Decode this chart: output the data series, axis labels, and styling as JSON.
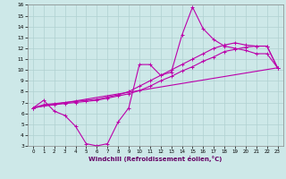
{
  "xlabel": "Windchill (Refroidissement éolien,°C)",
  "bg_color": "#cde8e8",
  "grid_color": "#b0d0d0",
  "line_color": "#bb00aa",
  "xlim": [
    -0.5,
    23.5
  ],
  "ylim": [
    3,
    16
  ],
  "xticks": [
    0,
    1,
    2,
    3,
    4,
    5,
    6,
    7,
    8,
    9,
    10,
    11,
    12,
    13,
    14,
    15,
    16,
    17,
    18,
    19,
    20,
    21,
    22,
    23
  ],
  "yticks": [
    3,
    4,
    5,
    6,
    7,
    8,
    9,
    10,
    11,
    12,
    13,
    14,
    15,
    16
  ],
  "series": [
    {
      "x": [
        0,
        1,
        2,
        3,
        4,
        5,
        6,
        7,
        8,
        9,
        10,
        11,
        12,
        13,
        14,
        15,
        16,
        17,
        18,
        19,
        20,
        21,
        22,
        23
      ],
      "y": [
        6.5,
        7.2,
        6.2,
        5.8,
        4.8,
        3.2,
        3.0,
        3.2,
        5.2,
        6.5,
        10.5,
        10.5,
        9.5,
        9.8,
        13.2,
        15.8,
        13.8,
        12.8,
        12.2,
        12.0,
        11.8,
        11.5,
        11.5,
        10.2
      ]
    },
    {
      "x": [
        0,
        1,
        2,
        3,
        4,
        5,
        6,
        7,
        8,
        9,
        10,
        11,
        12,
        13,
        14,
        15,
        16,
        17,
        18,
        19,
        20,
        21,
        22,
        23
      ],
      "y": [
        6.5,
        6.8,
        6.9,
        7.0,
        7.1,
        7.2,
        7.3,
        7.5,
        7.7,
        8.0,
        8.5,
        9.0,
        9.5,
        10.0,
        10.5,
        11.0,
        11.5,
        12.0,
        12.3,
        12.5,
        12.3,
        12.2,
        12.2,
        10.2
      ]
    },
    {
      "x": [
        0,
        1,
        2,
        3,
        4,
        5,
        6,
        7,
        8,
        9,
        10,
        11,
        12,
        13,
        14,
        15,
        16,
        17,
        18,
        19,
        20,
        21,
        22,
        23
      ],
      "y": [
        6.5,
        6.7,
        6.8,
        6.9,
        7.0,
        7.1,
        7.2,
        7.4,
        7.6,
        7.8,
        8.1,
        8.5,
        9.0,
        9.4,
        9.9,
        10.3,
        10.8,
        11.2,
        11.7,
        11.9,
        12.1,
        12.2,
        12.2,
        10.2
      ]
    },
    {
      "x": [
        0,
        23
      ],
      "y": [
        6.5,
        10.2
      ]
    }
  ]
}
